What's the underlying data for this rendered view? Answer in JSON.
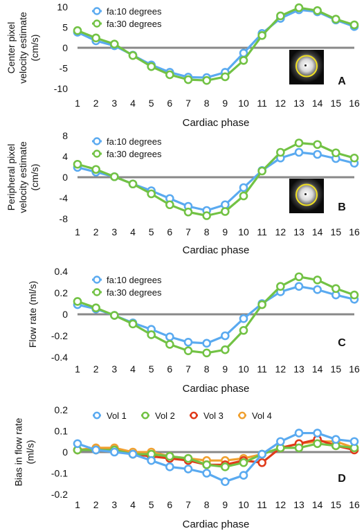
{
  "chart_data": [
    {
      "type": "line",
      "panel_letter": "A",
      "xlabel": "Cardiac phase",
      "ylabel": [
        "Center pixel",
        "velocity estimate",
        "(cm/s)"
      ],
      "ylim": [
        -10,
        10
      ],
      "yticks": [
        -10,
        -5,
        0,
        5,
        10
      ],
      "yticklabels": [
        "-10",
        "-5",
        "0",
        "5",
        "10"
      ],
      "x": [
        1,
        2,
        3,
        4,
        5,
        6,
        7,
        8,
        9,
        10,
        11,
        12,
        13,
        14,
        15,
        16
      ],
      "xticklabels": [
        "1",
        "2",
        "3",
        "4",
        "5",
        "6",
        "7",
        "8",
        "9",
        "10",
        "11",
        "12",
        "13",
        "14",
        "15",
        "16"
      ],
      "inset": "pixel-image",
      "series": [
        {
          "name": "fa:10 degrees",
          "color": "#5aaaf0",
          "values": [
            3.8,
            1.7,
            0.5,
            -1.8,
            -4.2,
            -6.0,
            -7.2,
            -7.3,
            -6.0,
            -1.3,
            3.5,
            7.2,
            9.3,
            8.8,
            6.8,
            5.2
          ]
        },
        {
          "name": "fa:30 degrees",
          "color": "#72c244",
          "values": [
            4.2,
            2.4,
            0.9,
            -1.9,
            -4.6,
            -6.6,
            -7.8,
            -8.0,
            -7.1,
            -3.1,
            3.0,
            7.8,
            9.8,
            9.1,
            7.0,
            5.6
          ]
        }
      ]
    },
    {
      "type": "line",
      "panel_letter": "B",
      "xlabel": "Cardiac phase",
      "ylabel": [
        "Peripheral pixel",
        "velocity estimate",
        "(cm/s)"
      ],
      "ylim": [
        -8,
        8
      ],
      "yticks": [
        -8,
        -4,
        0,
        4,
        8
      ],
      "yticklabels": [
        "-8",
        "-4",
        "0",
        "4",
        "8"
      ],
      "x": [
        1,
        2,
        3,
        4,
        5,
        6,
        7,
        8,
        9,
        10,
        11,
        12,
        13,
        14,
        15,
        16
      ],
      "xticklabels": [
        "1",
        "2",
        "3",
        "4",
        "5",
        "6",
        "7",
        "8",
        "9",
        "10",
        "11",
        "12",
        "13",
        "14",
        "15",
        "16"
      ],
      "inset": "pixel-image",
      "series": [
        {
          "name": "fa:10 degrees",
          "color": "#5aaaf0",
          "values": [
            1.9,
            1.0,
            0.1,
            -1.3,
            -2.6,
            -4.1,
            -5.6,
            -6.4,
            -5.3,
            -2.0,
            1.3,
            3.7,
            4.8,
            4.4,
            3.6,
            2.7
          ]
        },
        {
          "name": "fa:30 degrees",
          "color": "#72c244",
          "values": [
            2.5,
            1.5,
            0.1,
            -1.3,
            -3.2,
            -5.3,
            -6.7,
            -7.4,
            -6.6,
            -3.6,
            1.2,
            4.8,
            6.6,
            6.3,
            4.7,
            3.7
          ]
        }
      ]
    },
    {
      "type": "line",
      "panel_letter": "C",
      "xlabel": "Cardiac phase",
      "ylabel": [
        "Flow rate (ml/s)"
      ],
      "ylim": [
        -0.4,
        0.4
      ],
      "yticks": [
        -0.4,
        -0.2,
        0,
        0.2,
        0.4
      ],
      "yticklabels": [
        "-0.4",
        "-0.2",
        "0",
        "0.2",
        "0.4"
      ],
      "x": [
        1,
        2,
        3,
        4,
        5,
        6,
        7,
        8,
        9,
        10,
        11,
        12,
        13,
        14,
        15,
        16
      ],
      "xticklabels": [
        "1",
        "2",
        "3",
        "4",
        "5",
        "6",
        "7",
        "8",
        "9",
        "10",
        "11",
        "12",
        "13",
        "14",
        "15",
        "16"
      ],
      "series": [
        {
          "name": "fa:10 degrees",
          "color": "#5aaaf0",
          "values": [
            0.09,
            0.05,
            -0.01,
            -0.08,
            -0.14,
            -0.21,
            -0.26,
            -0.27,
            -0.2,
            -0.04,
            0.1,
            0.21,
            0.26,
            0.23,
            0.18,
            0.14
          ]
        },
        {
          "name": "fa:30 degrees",
          "color": "#72c244",
          "values": [
            0.12,
            0.06,
            -0.01,
            -0.09,
            -0.19,
            -0.28,
            -0.34,
            -0.36,
            -0.33,
            -0.15,
            0.09,
            0.26,
            0.35,
            0.32,
            0.24,
            0.18
          ]
        }
      ]
    },
    {
      "type": "line",
      "panel_letter": "D",
      "xlabel": "Cardiac phase",
      "ylabel": [
        "Bias in flow rate",
        "(ml/s)"
      ],
      "ylim": [
        -0.2,
        0.2
      ],
      "yticks": [
        -0.2,
        -0.1,
        0,
        0.1,
        0.2
      ],
      "yticklabels": [
        "-0.2",
        "-0.1",
        "0",
        "0.1",
        "0.2"
      ],
      "x": [
        1,
        2,
        3,
        4,
        5,
        6,
        7,
        8,
        9,
        10,
        11,
        12,
        13,
        14,
        15,
        16
      ],
      "xticklabels": [
        "1",
        "2",
        "3",
        "4",
        "5",
        "6",
        "7",
        "8",
        "9",
        "10",
        "11",
        "12",
        "13",
        "14",
        "15",
        "16"
      ],
      "series": [
        {
          "name": "Vol 4",
          "color": "#f0a030",
          "values": [
            0.01,
            0.02,
            0.02,
            0.0,
            0.0,
            -0.02,
            -0.03,
            -0.04,
            -0.04,
            -0.03,
            -0.01,
            0.02,
            0.04,
            0.05,
            0.05,
            0.02
          ]
        },
        {
          "name": "Vol 3",
          "color": "#e03a1a",
          "values": [
            0.01,
            0.01,
            0.01,
            -0.01,
            -0.02,
            -0.03,
            -0.04,
            -0.06,
            -0.06,
            -0.04,
            -0.05,
            0.02,
            0.04,
            0.06,
            0.03,
            0.01
          ]
        },
        {
          "name": "Vol 2",
          "color": "#72c244",
          "values": [
            0.01,
            0.01,
            0.01,
            -0.01,
            -0.01,
            -0.02,
            -0.03,
            -0.06,
            -0.07,
            -0.05,
            -0.01,
            0.02,
            0.02,
            0.04,
            0.03,
            0.02
          ]
        },
        {
          "name": "Vol 1",
          "color": "#5aaaf0",
          "values": [
            0.04,
            0.01,
            0.0,
            -0.01,
            -0.04,
            -0.07,
            -0.08,
            -0.1,
            -0.14,
            -0.11,
            -0.01,
            0.05,
            0.09,
            0.09,
            0.06,
            0.05
          ]
        }
      ],
      "legend_order": [
        "Vol 1",
        "Vol 2",
        "Vol 3",
        "Vol 4"
      ]
    }
  ]
}
